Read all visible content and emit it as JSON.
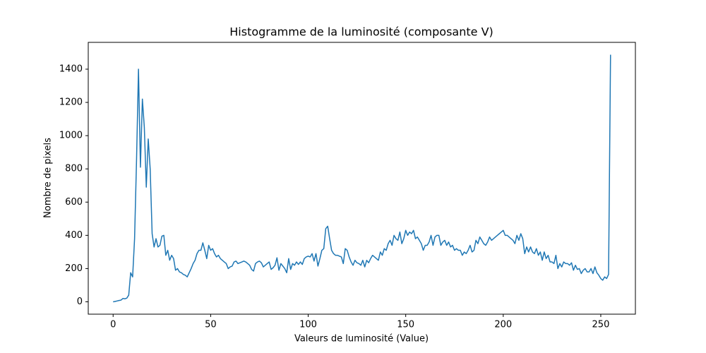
{
  "chart_data": {
    "type": "line",
    "title": "Histogramme de la luminosité (composante V)",
    "x_label": "Valeurs de luminosité (Value)",
    "y_label": "Nombre de pixels",
    "x": [
      0,
      1,
      2,
      3,
      4,
      5,
      6,
      7,
      8,
      9,
      10,
      11,
      12,
      13,
      14,
      15,
      16,
      17,
      18,
      19,
      20,
      21,
      22,
      23,
      24,
      25,
      26,
      27,
      28,
      29,
      30,
      31,
      32,
      33,
      34,
      35,
      36,
      37,
      38,
      39,
      40,
      41,
      42,
      43,
      44,
      45,
      46,
      47,
      48,
      49,
      50,
      51,
      52,
      53,
      54,
      55,
      56,
      57,
      58,
      59,
      60,
      61,
      62,
      63,
      64,
      65,
      66,
      67,
      68,
      69,
      70,
      71,
      72,
      73,
      74,
      75,
      76,
      77,
      78,
      79,
      80,
      81,
      82,
      83,
      84,
      85,
      86,
      87,
      88,
      89,
      90,
      91,
      92,
      93,
      94,
      95,
      96,
      97,
      98,
      99,
      100,
      101,
      102,
      103,
      104,
      105,
      106,
      107,
      108,
      109,
      110,
      111,
      112,
      113,
      114,
      115,
      116,
      117,
      118,
      119,
      120,
      121,
      122,
      123,
      124,
      125,
      126,
      127,
      128,
      129,
      130,
      131,
      132,
      133,
      134,
      135,
      136,
      137,
      138,
      139,
      140,
      141,
      142,
      143,
      144,
      145,
      146,
      147,
      148,
      149,
      150,
      151,
      152,
      153,
      154,
      155,
      156,
      157,
      158,
      159,
      160,
      161,
      162,
      163,
      164,
      165,
      166,
      167,
      168,
      169,
      170,
      171,
      172,
      173,
      174,
      175,
      176,
      177,
      178,
      179,
      180,
      181,
      182,
      183,
      184,
      185,
      186,
      187,
      188,
      189,
      190,
      191,
      192,
      193,
      194,
      195,
      196,
      197,
      198,
      199,
      200,
      201,
      202,
      203,
      204,
      205,
      206,
      207,
      208,
      209,
      210,
      211,
      212,
      213,
      214,
      215,
      216,
      217,
      218,
      219,
      220,
      221,
      222,
      223,
      224,
      225,
      226,
      227,
      228,
      229,
      230,
      231,
      232,
      233,
      234,
      235,
      236,
      237,
      238,
      239,
      240,
      241,
      242,
      243,
      244,
      245,
      246,
      247,
      248,
      249,
      250,
      251,
      252,
      253,
      254,
      255
    ],
    "series": [
      {
        "color": "#1f77b4",
        "values": [
          0,
          2,
          5,
          8,
          10,
          20,
          18,
          22,
          40,
          175,
          150,
          380,
          850,
          1400,
          810,
          1220,
          1050,
          690,
          980,
          800,
          410,
          330,
          380,
          330,
          340,
          395,
          400,
          280,
          310,
          250,
          280,
          260,
          190,
          200,
          180,
          175,
          165,
          160,
          150,
          175,
          200,
          230,
          250,
          290,
          310,
          310,
          355,
          310,
          260,
          340,
          310,
          320,
          290,
          270,
          280,
          260,
          250,
          240,
          230,
          200,
          210,
          215,
          240,
          245,
          230,
          235,
          240,
          245,
          240,
          230,
          220,
          195,
          185,
          230,
          240,
          245,
          235,
          210,
          220,
          230,
          240,
          195,
          205,
          220,
          265,
          190,
          230,
          215,
          200,
          175,
          260,
          195,
          230,
          220,
          240,
          225,
          240,
          225,
          260,
          270,
          275,
          270,
          290,
          245,
          290,
          215,
          260,
          310,
          320,
          440,
          455,
          380,
          310,
          290,
          280,
          280,
          275,
          270,
          230,
          320,
          310,
          270,
          240,
          220,
          250,
          235,
          230,
          220,
          250,
          210,
          250,
          235,
          260,
          280,
          270,
          260,
          250,
          300,
          280,
          320,
          310,
          350,
          370,
          340,
          400,
          380,
          370,
          420,
          350,
          380,
          430,
          400,
          420,
          410,
          430,
          380,
          390,
          370,
          350,
          310,
          340,
          340,
          360,
          400,
          340,
          390,
          400,
          400,
          340,
          360,
          370,
          340,
          360,
          330,
          340,
          310,
          320,
          310,
          310,
          280,
          300,
          290,
          310,
          340,
          300,
          310,
          370,
          350,
          390,
          370,
          350,
          340,
          360,
          390,
          370,
          380,
          390,
          400,
          410,
          420,
          430,
          400,
          400,
          390,
          380,
          370,
          350,
          400,
          370,
          410,
          380,
          290,
          330,
          300,
          330,
          300,
          290,
          320,
          280,
          300,
          250,
          300,
          260,
          280,
          240,
          240,
          230,
          280,
          200,
          230,
          210,
          240,
          230,
          230,
          220,
          235,
          190,
          220,
          195,
          200,
          170,
          190,
          200,
          180,
          180,
          200,
          170,
          210,
          175,
          160,
          140,
          130,
          150,
          140,
          165,
          1487
        ]
      }
    ],
    "xlim": [
      -12.75,
      267.75
    ],
    "ylim": [
      -74.35,
      1561.35
    ],
    "xticks": [
      0,
      50,
      100,
      150,
      200,
      250
    ],
    "yticks": [
      0,
      200,
      400,
      600,
      800,
      1000,
      1200,
      1400
    ],
    "grid": false
  }
}
